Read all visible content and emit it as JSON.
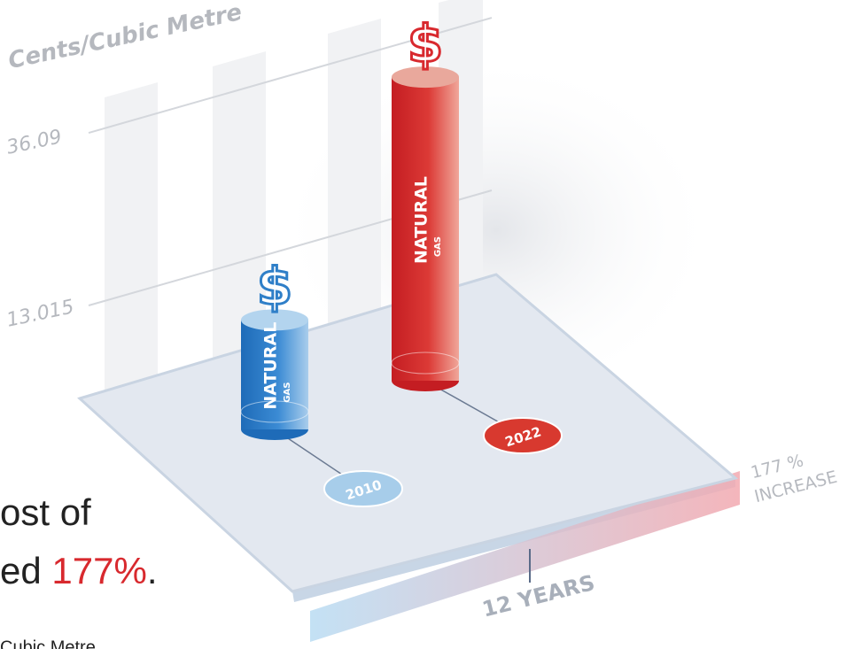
{
  "chart_data": {
    "type": "bar",
    "y_label": "Cents/Cubic Metre",
    "categories": [
      "2010",
      "2022"
    ],
    "values": [
      13.015,
      36.09
    ],
    "colors": [
      "#2f7fc8",
      "#d8292e"
    ],
    "ylim": [
      0,
      50
    ],
    "yticks": [
      13.015,
      36.09
    ],
    "bar_label": "NATURAL",
    "bar_sublabel": "GAS",
    "symbol": "$",
    "annotations": {
      "increase_value": "177 %",
      "increase_text": "INCREASE",
      "span": "12 YEARS"
    }
  },
  "caption": {
    "line1": "ost of",
    "line2": "ed ",
    "highlight": "177%",
    "end": ".",
    "footnote": "Cubic Metre"
  }
}
